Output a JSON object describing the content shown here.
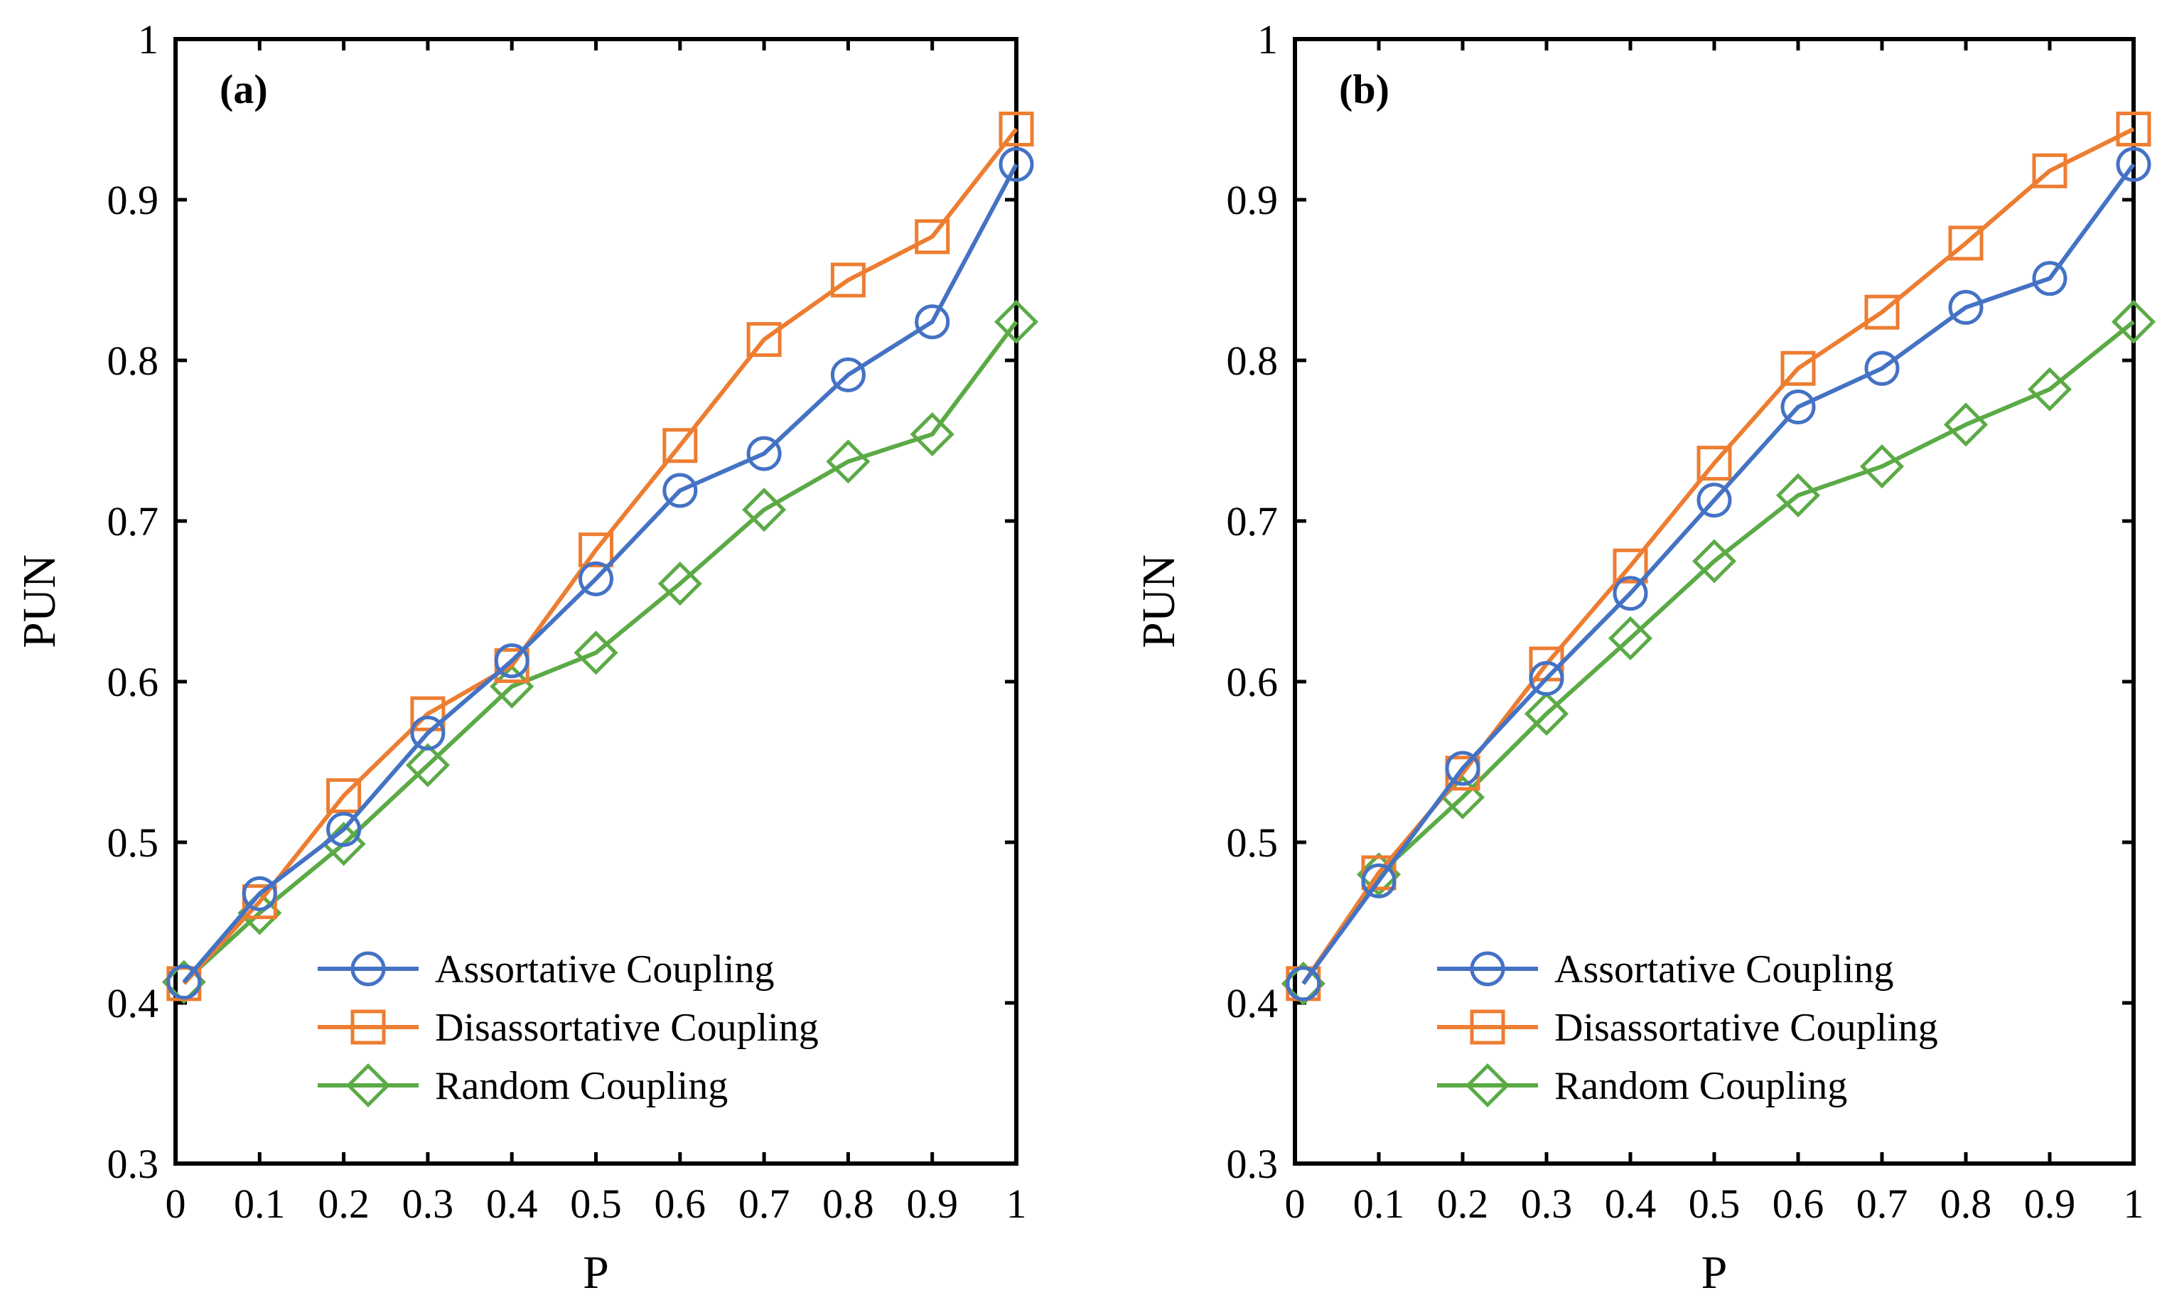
{
  "chart_data": [
    {
      "type": "line",
      "panel_label": "(a)",
      "xlabel": "P",
      "ylabel": "PUN",
      "xlim": [
        0,
        1
      ],
      "ylim": [
        0.3,
        1
      ],
      "xticks": [
        0,
        0.1,
        0.2,
        0.3,
        0.4,
        0.5,
        0.6,
        0.7,
        0.8,
        0.9,
        1
      ],
      "xtick_labels": [
        "0",
        "0.1",
        "0.2",
        "0.3",
        "0.4",
        "0.5",
        "0.6",
        "0.7",
        "0.8",
        "0.9",
        "1"
      ],
      "yticks": [
        0.3,
        0.4,
        0.5,
        0.6,
        0.7,
        0.8,
        0.9,
        1
      ],
      "ytick_labels": [
        "0.3",
        "0.4",
        "0.5",
        "0.6",
        "0.7",
        "0.8",
        "0.9",
        "1"
      ],
      "grid": false,
      "legend_position": "bottom-right",
      "x": [
        0.01,
        0.1,
        0.2,
        0.3,
        0.4,
        0.5,
        0.6,
        0.7,
        0.8,
        0.9,
        1.0
      ],
      "series": [
        {
          "name": "Assortative Coupling",
          "color": "#4472C4",
          "marker": "circle",
          "values": [
            0.413,
            0.468,
            0.508,
            0.568,
            0.613,
            0.664,
            0.719,
            0.742,
            0.791,
            0.824,
            0.922
          ]
        },
        {
          "name": "Disassortative Coupling",
          "color": "#ED7D31",
          "marker": "square",
          "values": [
            0.412,
            0.463,
            0.529,
            0.58,
            0.61,
            0.682,
            0.747,
            0.813,
            0.85,
            0.877,
            0.944
          ]
        },
        {
          "name": "Random Coupling",
          "color": "#5BAA46",
          "marker": "diamond",
          "values": [
            0.413,
            0.456,
            0.499,
            0.548,
            0.597,
            0.618,
            0.661,
            0.707,
            0.737,
            0.754,
            0.824
          ]
        }
      ]
    },
    {
      "type": "line",
      "panel_label": "(b)",
      "xlabel": "P",
      "ylabel": "PUN",
      "xlim": [
        0,
        1
      ],
      "ylim": [
        0.3,
        1
      ],
      "xticks": [
        0,
        0.1,
        0.2,
        0.3,
        0.4,
        0.5,
        0.6,
        0.7,
        0.8,
        0.9,
        1
      ],
      "xtick_labels": [
        "0",
        "0.1",
        "0.2",
        "0.3",
        "0.4",
        "0.5",
        "0.6",
        "0.7",
        "0.8",
        "0.9",
        "1"
      ],
      "yticks": [
        0.3,
        0.4,
        0.5,
        0.6,
        0.7,
        0.8,
        0.9,
        1
      ],
      "ytick_labels": [
        "0.3",
        "0.4",
        "0.5",
        "0.6",
        "0.7",
        "0.8",
        "0.9",
        "1"
      ],
      "grid": false,
      "legend_position": "bottom-right",
      "x": [
        0.01,
        0.1,
        0.2,
        0.3,
        0.4,
        0.5,
        0.6,
        0.7,
        0.8,
        0.9,
        1.0
      ],
      "series": [
        {
          "name": "Assortative Coupling",
          "color": "#4472C4",
          "marker": "circle",
          "values": [
            0.412,
            0.476,
            0.546,
            0.602,
            0.655,
            0.713,
            0.771,
            0.795,
            0.833,
            0.851,
            0.922
          ]
        },
        {
          "name": "Disassortative Coupling",
          "color": "#ED7D31",
          "marker": "square",
          "values": [
            0.412,
            0.481,
            0.543,
            0.611,
            0.672,
            0.736,
            0.795,
            0.83,
            0.873,
            0.918,
            0.944
          ]
        },
        {
          "name": "Random Coupling",
          "color": "#5BAA46",
          "marker": "diamond",
          "values": [
            0.412,
            0.48,
            0.528,
            0.58,
            0.627,
            0.675,
            0.716,
            0.734,
            0.76,
            0.782,
            0.824
          ]
        }
      ]
    }
  ]
}
